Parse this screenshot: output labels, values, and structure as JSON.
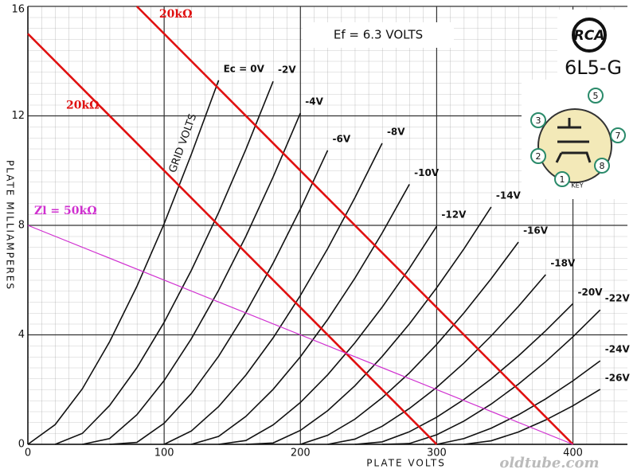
{
  "chart_data": {
    "type": "line",
    "title": "6L5-G",
    "brand": "RCA",
    "heater_note": "Ef = 6.3 VOLTS",
    "xlabel": "PLATE VOLTS",
    "ylabel": "PLATE MILLIAMPERES",
    "grid_note": "GRID VOLTS",
    "watermark": "oldtube.com",
    "pins": [
      "5",
      "3",
      "7",
      "2",
      "8",
      "1"
    ],
    "key_label": "KEY",
    "xlim": [
      0,
      440
    ],
    "ylim": [
      0,
      16
    ],
    "xticks": [
      0,
      100,
      200,
      300,
      400
    ],
    "yticks": [
      0,
      4,
      8,
      12,
      16
    ],
    "grid": true,
    "x": [
      0,
      20,
      40,
      60,
      80,
      100,
      120,
      140,
      160,
      180,
      200,
      220,
      240,
      260,
      280,
      300,
      320,
      340,
      360,
      380,
      400,
      420,
      440
    ],
    "series": [
      {
        "name": "Ec = 0V",
        "color": "#111111",
        "values": [
          0,
          0.72,
          2.03,
          3.75,
          5.77,
          8.06,
          10.6,
          13.3,
          null,
          null,
          null,
          null,
          null,
          null,
          null,
          null,
          null,
          null,
          null,
          null,
          null,
          null,
          null
        ]
      },
      {
        "name": "-2V",
        "color": "#111111",
        "values": [
          null,
          0,
          0.4,
          1.42,
          2.8,
          4.46,
          6.36,
          8.47,
          10.78,
          13.26,
          null,
          null,
          null,
          null,
          null,
          null,
          null,
          null,
          null,
          null,
          null,
          null,
          null
        ]
      },
      {
        "name": "-4V",
        "color": "#111111",
        "values": [
          null,
          null,
          0,
          0.21,
          1.08,
          2.33,
          3.86,
          5.63,
          7.6,
          9.77,
          12.1,
          null,
          null,
          null,
          null,
          null,
          null,
          null,
          null,
          null,
          null,
          null,
          null
        ]
      },
      {
        "name": "-6V",
        "color": "#111111",
        "values": [
          null,
          null,
          null,
          0,
          0.07,
          0.77,
          1.86,
          3.22,
          4.82,
          6.62,
          8.6,
          10.74,
          null,
          null,
          null,
          null,
          null,
          null,
          null,
          null,
          null,
          null,
          null
        ]
      },
      {
        "name": "-8V",
        "color": "#111111",
        "values": [
          null,
          null,
          null,
          null,
          null,
          0,
          0.49,
          1.38,
          2.53,
          3.89,
          5.44,
          7.15,
          9.01,
          11.0,
          null,
          null,
          null,
          null,
          null,
          null,
          null,
          null,
          null
        ]
      },
      {
        "name": "-10V",
        "color": "#111111",
        "values": [
          null,
          null,
          null,
          null,
          null,
          null,
          0,
          0.29,
          1.02,
          2.01,
          3.2,
          4.56,
          6.07,
          7.72,
          9.5,
          null,
          null,
          null,
          null,
          null,
          null,
          null,
          null
        ]
      },
      {
        "name": "-12V",
        "color": "#111111",
        "values": [
          null,
          null,
          null,
          null,
          null,
          null,
          null,
          0,
          0.14,
          0.71,
          1.53,
          2.54,
          3.71,
          5.01,
          6.43,
          7.97,
          null,
          null,
          null,
          null,
          null,
          null,
          null
        ]
      },
      {
        "name": "-14V",
        "color": "#111111",
        "values": [
          null,
          null,
          null,
          null,
          null,
          null,
          null,
          null,
          0,
          0.05,
          0.51,
          1.23,
          2.14,
          3.21,
          4.4,
          5.72,
          7.14,
          8.67,
          null,
          null,
          null,
          null,
          null
        ]
      },
      {
        "name": "-16V",
        "color": "#111111",
        "values": [
          null,
          null,
          null,
          null,
          null,
          null,
          null,
          null,
          null,
          null,
          0,
          0.33,
          0.92,
          1.7,
          2.61,
          3.65,
          4.8,
          6.05,
          7.39,
          null,
          null,
          null,
          null
        ]
      },
      {
        "name": "-18V",
        "color": "#111111",
        "values": [
          null,
          null,
          null,
          null,
          null,
          null,
          null,
          null,
          null,
          null,
          null,
          0,
          0.19,
          0.66,
          1.31,
          2.08,
          2.97,
          3.96,
          5.04,
          6.2,
          null,
          null,
          null
        ]
      },
      {
        "name": "-20V",
        "color": "#111111",
        "values": [
          null,
          null,
          null,
          null,
          null,
          null,
          null,
          null,
          null,
          null,
          null,
          null,
          0,
          0.09,
          0.46,
          0.99,
          1.64,
          2.39,
          3.23,
          4.15,
          5.14,
          null,
          null
        ]
      },
      {
        "name": "-22V",
        "color": "#111111",
        "values": [
          null,
          null,
          null,
          null,
          null,
          null,
          null,
          null,
          null,
          null,
          null,
          null,
          null,
          0,
          0.03,
          0.35,
          0.85,
          1.47,
          2.2,
          3.02,
          3.93,
          4.91,
          null
        ]
      },
      {
        "name": "-24V",
        "color": "#111111",
        "values": [
          null,
          null,
          null,
          null,
          null,
          null,
          null,
          null,
          null,
          null,
          null,
          null,
          null,
          null,
          null,
          0,
          0.21,
          0.59,
          1.08,
          1.66,
          2.32,
          3.05,
          null
        ]
      },
      {
        "name": "-26V",
        "color": "#111111",
        "values": [
          null,
          null,
          null,
          null,
          null,
          null,
          null,
          null,
          null,
          null,
          null,
          null,
          null,
          null,
          null,
          null,
          0,
          0.13,
          0.45,
          0.89,
          1.41,
          2.01,
          null
        ]
      }
    ],
    "load_lines": [
      {
        "label": "20kΩ",
        "color": "#e01010",
        "x": [
          80,
          400
        ],
        "values": [
          16,
          0
        ]
      },
      {
        "label": "20kΩ",
        "color": "#e01010",
        "x": [
          0,
          300
        ],
        "values": [
          15,
          0
        ]
      },
      {
        "label": "Zl = 50kΩ",
        "color": "#d030d0",
        "x": [
          0,
          400
        ],
        "values": [
          8,
          0
        ]
      }
    ]
  }
}
